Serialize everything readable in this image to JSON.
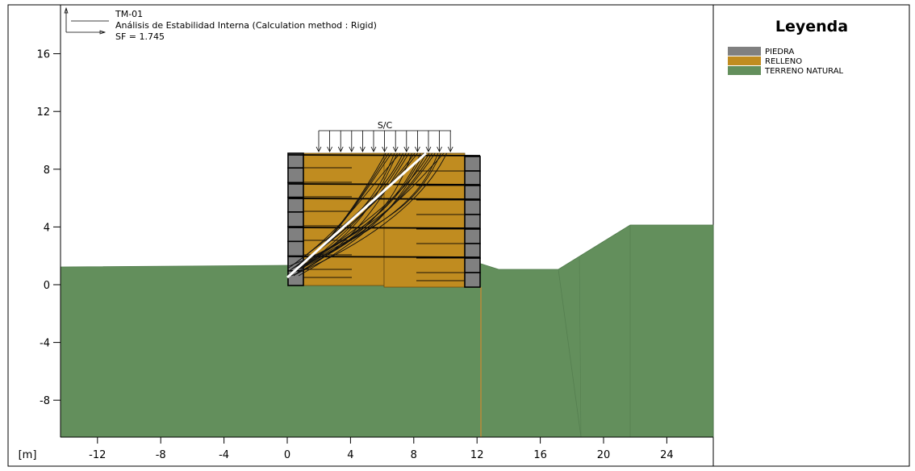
{
  "header": {
    "lines": [
      "TM-01",
      "Análisis de Estabilidad Interna (Calculation method : Rigid)",
      "SF = 1.745"
    ]
  },
  "surcharge_label": "S/C",
  "axes": {
    "unit_label": "[m]",
    "x_ticks": [
      -12,
      -8,
      -4,
      0,
      4,
      8,
      12,
      16,
      20,
      24
    ],
    "y_ticks": [
      16,
      12,
      8,
      4,
      0,
      -4,
      -8
    ]
  },
  "legend": {
    "title": "Leyenda",
    "items": [
      {
        "label": "PIEDRA",
        "color": "#808080"
      },
      {
        "label": "RELLENO",
        "color": "#c08c20"
      },
      {
        "label": "TERRENO NATURAL",
        "color": "#638f5c"
      }
    ]
  },
  "colors": {
    "ground": "#638f5c",
    "fill": "#c08c20",
    "stone": "#808080",
    "critical_surface": "#ffffff"
  }
}
